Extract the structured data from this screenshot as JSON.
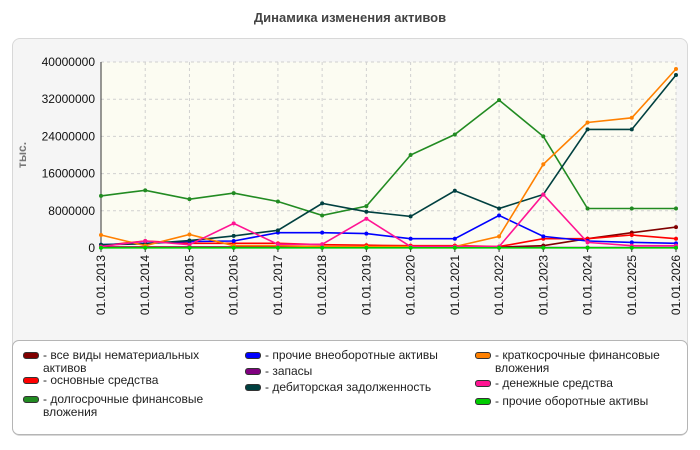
{
  "chart_data": {
    "type": "line",
    "title": "Динамика изменения активов",
    "ylabel": "тыс.",
    "xlabel": "",
    "ylim": [
      0,
      40000000
    ],
    "yticks": [
      "0",
      "8000000",
      "16000000",
      "24000000",
      "32000000",
      "40000000"
    ],
    "ytick_values": [
      0,
      8000000,
      16000000,
      24000000,
      32000000,
      40000000
    ],
    "categories": [
      "01.01.2013",
      "01.01.2014",
      "01.01.2015",
      "01.01.2016",
      "01.01.2017",
      "01.01.2018",
      "01.01.2019",
      "01.01.2020",
      "01.01.2021",
      "01.01.2022",
      "01.01.2023",
      "01.01.2024",
      "01.01.2025",
      "01.01.2026"
    ],
    "grid": true,
    "legend_position": "bottom",
    "series": [
      {
        "name": "все виды нематериальных активов",
        "color": "#800000",
        "values": [
          200000,
          200000,
          200000,
          200000,
          200000,
          200000,
          200000,
          200000,
          200000,
          200000,
          500000,
          2000000,
          3300000,
          4500000
        ]
      },
      {
        "name": "основные средства",
        "color": "#ff0000",
        "values": [
          500000,
          1500000,
          1000000,
          1000000,
          1000000,
          700000,
          600000,
          500000,
          500000,
          300000,
          2000000,
          2000000,
          2800000,
          2000000
        ]
      },
      {
        "name": "долгосрочные финансовые вложения",
        "color": "#228b22",
        "values": [
          11200000,
          12400000,
          10500000,
          11800000,
          10000000,
          7000000,
          9000000,
          20000000,
          24400000,
          31800000,
          24000000,
          8500000,
          8500000,
          8500000
        ]
      },
      {
        "name": "прочие внеоборотные активы",
        "color": "#0000ff",
        "values": [
          700000,
          1000000,
          1400000,
          1500000,
          3300000,
          3300000,
          3100000,
          2000000,
          2000000,
          7000000,
          2500000,
          1500000,
          1200000,
          1000000
        ]
      },
      {
        "name": "запасы",
        "color": "#800080",
        "values": [
          100000,
          100000,
          100000,
          100000,
          100000,
          100000,
          100000,
          100000,
          100000,
          100000,
          100000,
          100000,
          100000,
          100000
        ]
      },
      {
        "name": "дебиторская задолженность",
        "color": "#004040",
        "values": [
          700000,
          900000,
          1600000,
          2600000,
          3800000,
          9600000,
          7800000,
          6800000,
          12300000,
          8500000,
          11500000,
          25500000,
          25500000,
          37200000
        ]
      },
      {
        "name": "краткосрочные финансовые вложения",
        "color": "#ff8000",
        "values": [
          2800000,
          500000,
          2900000,
          500000,
          500000,
          300000,
          300000,
          300000,
          300000,
          2500000,
          18000000,
          27000000,
          28000000,
          38500000
        ]
      },
      {
        "name": "денежные средства",
        "color": "#ff1493",
        "values": [
          300000,
          1500000,
          700000,
          5300000,
          800000,
          800000,
          6300000,
          300000,
          300000,
          300000,
          11500000,
          1200000,
          500000,
          500000
        ]
      },
      {
        "name": "прочие оборотные активы",
        "color": "#00cc00",
        "values": [
          50000,
          50000,
          50000,
          50000,
          50000,
          50000,
          50000,
          50000,
          50000,
          50000,
          50000,
          50000,
          50000,
          50000
        ]
      }
    ]
  }
}
